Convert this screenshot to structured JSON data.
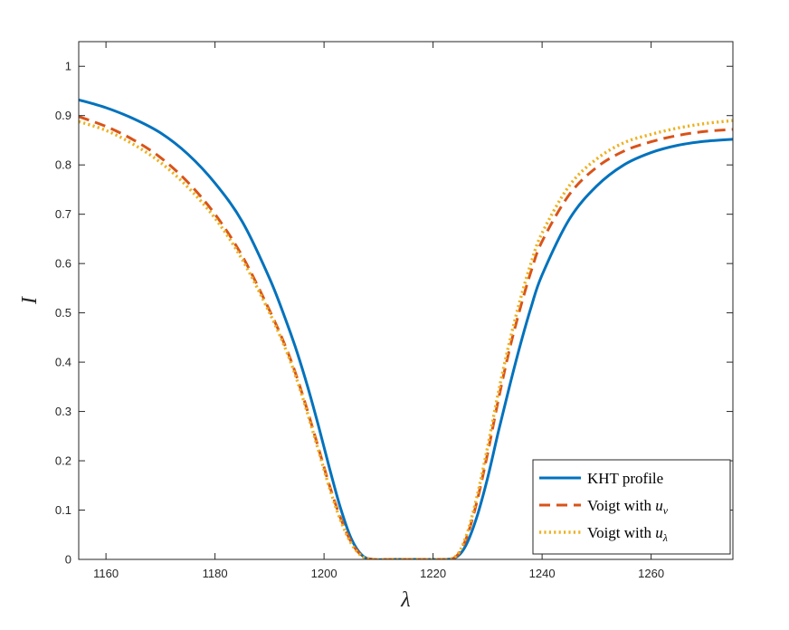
{
  "chart_data": {
    "type": "line",
    "title": "",
    "xlabel": "λ",
    "ylabel": "I",
    "xlim": [
      1155,
      1275
    ],
    "ylim": [
      0,
      1.05
    ],
    "xticks": [
      1160,
      1180,
      1200,
      1220,
      1240,
      1260
    ],
    "yticks": [
      0,
      0.1,
      0.2,
      0.3,
      0.4,
      0.5,
      0.6,
      0.7,
      0.8,
      0.9,
      1
    ],
    "ytick_labels": [
      "0",
      "0.1",
      "0.2",
      "0.3",
      "0.4",
      "0.5",
      "0.6",
      "0.7",
      "0.8",
      "0.9",
      "1"
    ],
    "grid": false,
    "legend_position": "bottom-right",
    "series": [
      {
        "name": "KHT profile",
        "color": "#0072BD",
        "style": "solid",
        "x": [
          1155,
          1160,
          1165,
          1170,
          1175,
          1180,
          1185,
          1190,
          1193,
          1195,
          1197,
          1199,
          1201,
          1203,
          1205,
          1207,
          1209,
          1212,
          1215,
          1218,
          1221,
          1224,
          1226,
          1228,
          1230,
          1232,
          1234,
          1236,
          1238,
          1240,
          1245,
          1250,
          1255,
          1260,
          1265,
          1270,
          1275
        ],
        "y": [
          0.932,
          0.916,
          0.894,
          0.865,
          0.822,
          0.763,
          0.685,
          0.57,
          0.485,
          0.422,
          0.35,
          0.27,
          0.185,
          0.105,
          0.042,
          0.008,
          0.0,
          0.0,
          0.0,
          0.0,
          0.0,
          0.003,
          0.028,
          0.085,
          0.165,
          0.26,
          0.35,
          0.435,
          0.512,
          0.577,
          0.69,
          0.757,
          0.8,
          0.825,
          0.84,
          0.848,
          0.852
        ]
      },
      {
        "name": "Voigt with u_ν",
        "label_base": "Voigt with ",
        "label_var": "u",
        "label_sub": "ν",
        "color": "#D95319",
        "style": "dashed",
        "x": [
          1155,
          1160,
          1165,
          1170,
          1175,
          1180,
          1185,
          1190,
          1193,
          1195,
          1197,
          1199,
          1201,
          1203,
          1205,
          1207,
          1209,
          1212,
          1215,
          1218,
          1221,
          1224,
          1226,
          1228,
          1230,
          1232,
          1234,
          1236,
          1238,
          1240,
          1245,
          1250,
          1255,
          1260,
          1265,
          1270,
          1275
        ],
        "y": [
          0.898,
          0.878,
          0.851,
          0.815,
          0.765,
          0.7,
          0.615,
          0.505,
          0.43,
          0.37,
          0.3,
          0.225,
          0.15,
          0.085,
          0.035,
          0.007,
          0.0,
          0.0,
          0.0,
          0.0,
          0.0,
          0.004,
          0.04,
          0.115,
          0.215,
          0.325,
          0.425,
          0.51,
          0.585,
          0.645,
          0.74,
          0.795,
          0.828,
          0.847,
          0.86,
          0.868,
          0.872
        ]
      },
      {
        "name": "Voigt with u_λ",
        "label_base": "Voigt with ",
        "label_var": "u",
        "label_sub": "λ",
        "color": "#EDB120",
        "style": "dotted",
        "x": [
          1155,
          1160,
          1165,
          1170,
          1175,
          1180,
          1185,
          1190,
          1193,
          1195,
          1197,
          1199,
          1201,
          1203,
          1205,
          1207,
          1209,
          1212,
          1215,
          1218,
          1221,
          1224,
          1226,
          1228,
          1230,
          1232,
          1234,
          1236,
          1238,
          1240,
          1245,
          1250,
          1255,
          1260,
          1265,
          1270,
          1275
        ],
        "y": [
          0.888,
          0.87,
          0.842,
          0.805,
          0.755,
          0.692,
          0.608,
          0.5,
          0.425,
          0.365,
          0.295,
          0.22,
          0.145,
          0.08,
          0.032,
          0.006,
          0.0,
          0.0,
          0.0,
          0.0,
          0.0,
          0.005,
          0.045,
          0.125,
          0.228,
          0.34,
          0.44,
          0.527,
          0.602,
          0.662,
          0.758,
          0.812,
          0.845,
          0.862,
          0.875,
          0.884,
          0.89
        ]
      }
    ]
  }
}
